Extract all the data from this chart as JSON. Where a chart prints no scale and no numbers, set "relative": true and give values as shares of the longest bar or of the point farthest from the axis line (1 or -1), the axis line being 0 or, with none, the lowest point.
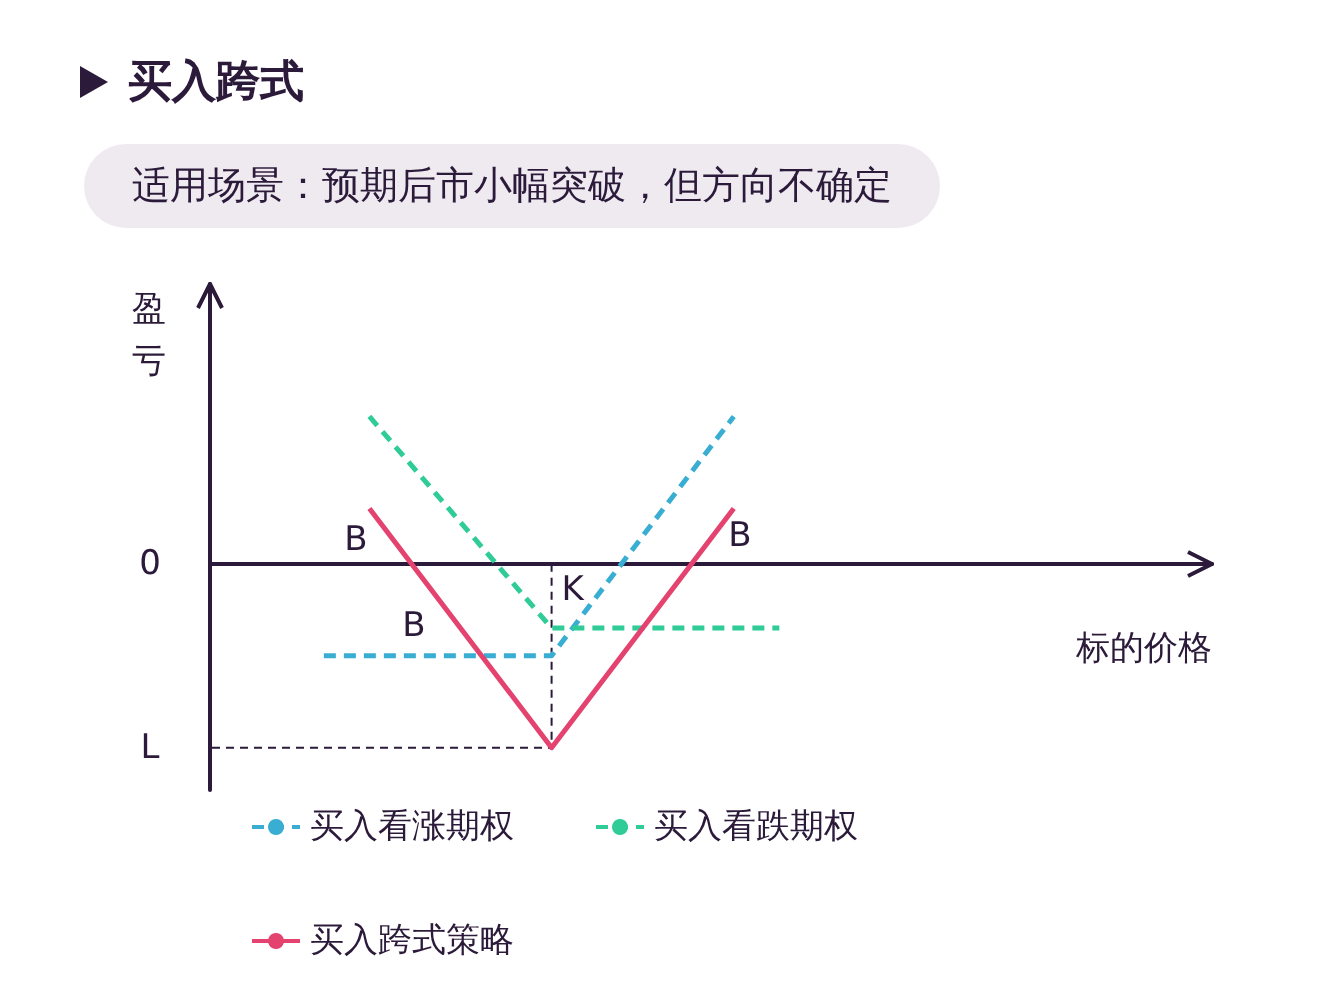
{
  "chart_data": {
    "type": "line",
    "title": "买入跨式",
    "subtitle": "适用场景：预期后市小幅突破，但方向不确定",
    "xlabel": "标的价格",
    "ylabel": "盈亏",
    "relative": true,
    "grid": false,
    "legend": "bottom",
    "marker": "none",
    "categories": [
      null,
      null,
      null,
      null,
      null,
      null,
      null,
      null,
      null,
      null,
      null,
      null,
      null,
      null,
      null,
      null,
      null,
      null,
      null,
      null,
      null,
      null
    ],
    "series": [
      {
        "name": "买入看涨期权",
        "color": "#3aaed2",
        "line_style": "dashed",
        "values": [
          null,
          null,
          -0.5,
          null,
          null,
          null,
          null,
          -0.5,
          null,
          null,
          null,
          0.8,
          null,
          null,
          null,
          null,
          null,
          null,
          null,
          null,
          null,
          null
        ]
      },
      {
        "name": "买入看跌期权",
        "color": "#2fcc97",
        "line_style": "dashed",
        "values": [
          null,
          null,
          null,
          0.8,
          null,
          null,
          null,
          -0.35,
          null,
          null,
          null,
          null,
          -0.35,
          null,
          null,
          null,
          null,
          null,
          null,
          null,
          null,
          null
        ]
      },
      {
        "name": "买入跨式策略",
        "color": "#e4426f",
        "line_style": "solid",
        "values": [
          null,
          null,
          null,
          0.3,
          null,
          null,
          null,
          -1,
          null,
          null,
          null,
          0.3,
          null,
          null,
          null,
          null,
          null,
          null,
          null,
          null,
          null,
          null
        ]
      }
    ],
    "ref_lines": [
      {
        "axis": "y",
        "value": 0,
        "label": "0",
        "line_style": "solid"
      },
      {
        "axis": "y",
        "value": -1,
        "label": "L",
        "line_style": "dashed"
      },
      {
        "axis": "x",
        "label": "K",
        "line_style": "dashed"
      }
    ],
    "annotations": [
      "B",
      "B",
      "B"
    ]
  }
}
